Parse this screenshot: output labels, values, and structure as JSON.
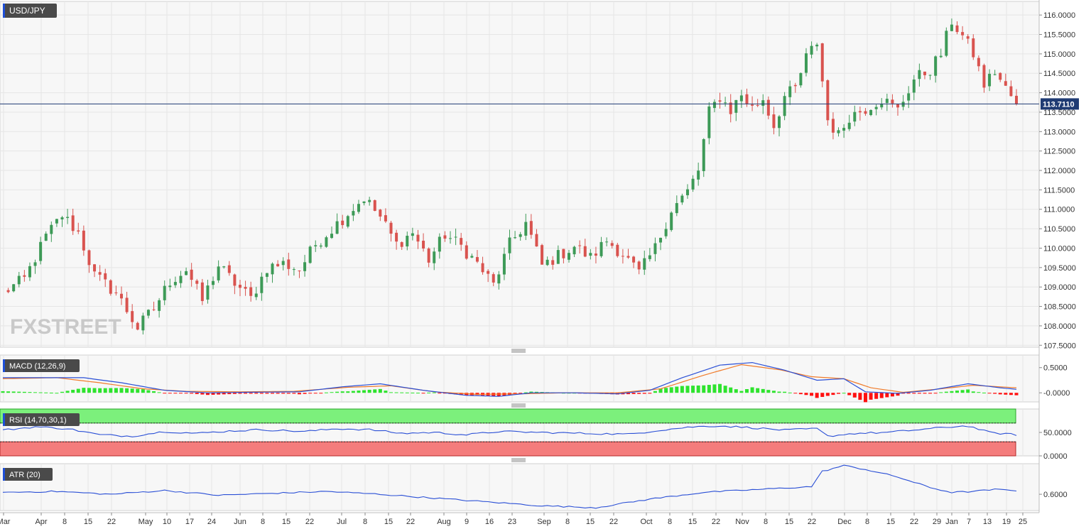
{
  "symbol": "USD/JPY",
  "watermark": "FXSTREET",
  "colors": {
    "up": "#3d9a57",
    "down": "#d9534f",
    "price_line": "#1f3b73",
    "macd_line": "#2a4fd6",
    "signal_line": "#f07b2a",
    "hist_pos": "#2ee32e",
    "hist_neg": "#ff1010",
    "rsi_line": "#2a4fd6",
    "rsi_overbought_fill": "#7cf07c",
    "rsi_oversold_fill": "#f47c7c",
    "atr_line": "#2a4fd6",
    "grid": "#e6e6e6",
    "panel_bg": "#f7f7f7",
    "label_bg": "#4a4a4a"
  },
  "current_price": {
    "value": 113.711,
    "label": "113.7110"
  },
  "indicators": {
    "macd": {
      "label": "MACD (12,26,9)",
      "ticks": [
        "0.5000",
        "-0.0000"
      ]
    },
    "rsi": {
      "label": "RSI (14,70,30,1)",
      "ticks": [
        "50.0000",
        "0.0000"
      ]
    },
    "atr": {
      "label": "ATR (20)",
      "ticks": [
        "0.6000"
      ]
    }
  },
  "chart_data": {
    "type": "candlestick",
    "ylim": [
      107.45,
      116.35
    ],
    "y_ticks": [
      "116.0000",
      "115.5000",
      "115.0000",
      "114.5000",
      "114.0000",
      "113.5000",
      "113.0000",
      "112.5000",
      "112.0000",
      "111.5000",
      "111.0000",
      "110.5000",
      "110.0000",
      "109.5000",
      "109.0000",
      "108.5000",
      "108.0000",
      "107.5000"
    ],
    "x_tick_labels": [
      "Mar",
      "Apr",
      "8",
      "15",
      "22",
      "May",
      "10",
      "17",
      "24",
      "Jun",
      "8",
      "15",
      "22",
      "Jul",
      "8",
      "15",
      "22",
      "Aug",
      "9",
      "16",
      "23",
      "Sep",
      "8",
      "15",
      "22",
      "Oct",
      "8",
      "15",
      "22",
      "Nov",
      "8",
      "15",
      "22",
      "Dec",
      "8",
      "15",
      "22",
      "29",
      "Jan",
      "7",
      "13",
      "19",
      "25"
    ],
    "price_path": [
      [
        0,
        108.85
      ],
      [
        4,
        109.2
      ],
      [
        8,
        110.3
      ],
      [
        11,
        110.85
      ],
      [
        14,
        110.4
      ],
      [
        17,
        109.3
      ],
      [
        21,
        108.85
      ],
      [
        25,
        107.95
      ],
      [
        28,
        108.45
      ],
      [
        31,
        109.15
      ],
      [
        34,
        109.45
      ],
      [
        37,
        108.65
      ],
      [
        40,
        109.55
      ],
      [
        43,
        109.1
      ],
      [
        46,
        108.7
      ],
      [
        49,
        109.5
      ],
      [
        52,
        109.6
      ],
      [
        55,
        109.45
      ],
      [
        58,
        110.1
      ],
      [
        61,
        110.5
      ],
      [
        64,
        110.9
      ],
      [
        67,
        111.3
      ],
      [
        70,
        110.8
      ],
      [
        73,
        110.1
      ],
      [
        76,
        110.4
      ],
      [
        79,
        109.7
      ],
      [
        82,
        110.35
      ],
      [
        85,
        110.05
      ],
      [
        88,
        109.6
      ],
      [
        91,
        109.05
      ],
      [
        94,
        110.1
      ],
      [
        97,
        110.65
      ],
      [
        100,
        109.55
      ],
      [
        103,
        109.8
      ],
      [
        106,
        110.05
      ],
      [
        109,
        109.75
      ],
      [
        112,
        110.2
      ],
      [
        115,
        109.85
      ],
      [
        118,
        109.35
      ],
      [
        121,
        110.0
      ],
      [
        124,
        111.0
      ],
      [
        127,
        111.45
      ],
      [
        129,
        112.0
      ],
      [
        131,
        113.5
      ],
      [
        133,
        113.9
      ],
      [
        135,
        113.55
      ],
      [
        137,
        113.95
      ],
      [
        139,
        113.6
      ],
      [
        141,
        113.85
      ],
      [
        143,
        113.15
      ],
      [
        145,
        113.9
      ],
      [
        147,
        114.1
      ],
      [
        149,
        114.9
      ],
      [
        151,
        115.3
      ],
      [
        153,
        113.3
      ],
      [
        155,
        112.9
      ],
      [
        157,
        113.4
      ],
      [
        160,
        113.6
      ],
      [
        163,
        113.85
      ],
      [
        166,
        113.55
      ],
      [
        169,
        114.35
      ],
      [
        172,
        114.6
      ],
      [
        174,
        115.0
      ],
      [
        176,
        115.85
      ],
      [
        178,
        115.45
      ],
      [
        180,
        115.0
      ],
      [
        182,
        114.2
      ],
      [
        184,
        114.55
      ],
      [
        186,
        114.1
      ],
      [
        188,
        113.71
      ]
    ],
    "macd_path": [
      [
        0,
        0.3
      ],
      [
        8,
        0.3
      ],
      [
        15,
        0.3
      ],
      [
        22,
        0.2
      ],
      [
        30,
        0.05
      ],
      [
        38,
        0.0
      ],
      [
        45,
        0.01
      ],
      [
        55,
        0.02
      ],
      [
        63,
        0.12
      ],
      [
        70,
        0.18
      ],
      [
        78,
        0.05
      ],
      [
        86,
        -0.05
      ],
      [
        92,
        -0.07
      ],
      [
        98,
        0.0
      ],
      [
        106,
        0.0
      ],
      [
        114,
        -0.02
      ],
      [
        120,
        0.05
      ],
      [
        126,
        0.3
      ],
      [
        133,
        0.55
      ],
      [
        139,
        0.6
      ],
      [
        145,
        0.45
      ],
      [
        151,
        0.25
      ],
      [
        156,
        0.28
      ],
      [
        160,
        0.02
      ],
      [
        166,
        -0.01
      ],
      [
        172,
        0.05
      ],
      [
        179,
        0.18
      ],
      [
        185,
        0.1
      ],
      [
        188,
        0.07
      ]
    ],
    "signal_path": [
      [
        0,
        0.28
      ],
      [
        10,
        0.3
      ],
      [
        18,
        0.2
      ],
      [
        26,
        0.08
      ],
      [
        34,
        0.03
      ],
      [
        44,
        0.02
      ],
      [
        54,
        0.03
      ],
      [
        64,
        0.11
      ],
      [
        72,
        0.14
      ],
      [
        80,
        0.02
      ],
      [
        88,
        -0.03
      ],
      [
        96,
        -0.02
      ],
      [
        104,
        0.0
      ],
      [
        114,
        0.0
      ],
      [
        122,
        0.08
      ],
      [
        130,
        0.35
      ],
      [
        137,
        0.56
      ],
      [
        144,
        0.46
      ],
      [
        150,
        0.32
      ],
      [
        156,
        0.28
      ],
      [
        161,
        0.1
      ],
      [
        167,
        0.01
      ],
      [
        174,
        0.08
      ],
      [
        180,
        0.15
      ],
      [
        188,
        0.1
      ]
    ],
    "rsi_path": [
      [
        0,
        55
      ],
      [
        6,
        62
      ],
      [
        12,
        58
      ],
      [
        18,
        45
      ],
      [
        24,
        42
      ],
      [
        30,
        52
      ],
      [
        36,
        48
      ],
      [
        42,
        53
      ],
      [
        48,
        56
      ],
      [
        56,
        52
      ],
      [
        62,
        58
      ],
      [
        68,
        56
      ],
      [
        74,
        48
      ],
      [
        80,
        50
      ],
      [
        86,
        45
      ],
      [
        92,
        52
      ],
      [
        100,
        50
      ],
      [
        108,
        48
      ],
      [
        116,
        46
      ],
      [
        122,
        55
      ],
      [
        128,
        62
      ],
      [
        133,
        64
      ],
      [
        139,
        60
      ],
      [
        145,
        55
      ],
      [
        151,
        58
      ],
      [
        153,
        42
      ],
      [
        158,
        48
      ],
      [
        164,
        50
      ],
      [
        170,
        56
      ],
      [
        176,
        62
      ],
      [
        179,
        64
      ],
      [
        183,
        50
      ],
      [
        188,
        45
      ]
    ],
    "atr_path": [
      [
        0,
        0.62
      ],
      [
        10,
        0.63
      ],
      [
        20,
        0.6
      ],
      [
        30,
        0.64
      ],
      [
        40,
        0.59
      ],
      [
        50,
        0.61
      ],
      [
        60,
        0.63
      ],
      [
        70,
        0.6
      ],
      [
        80,
        0.56
      ],
      [
        90,
        0.52
      ],
      [
        100,
        0.48
      ],
      [
        110,
        0.46
      ],
      [
        120,
        0.55
      ],
      [
        130,
        0.62
      ],
      [
        140,
        0.65
      ],
      [
        150,
        0.68
      ],
      [
        152,
        0.84
      ],
      [
        156,
        0.9
      ],
      [
        160,
        0.86
      ],
      [
        166,
        0.78
      ],
      [
        172,
        0.67
      ],
      [
        176,
        0.62
      ],
      [
        180,
        0.63
      ],
      [
        184,
        0.65
      ],
      [
        188,
        0.64
      ]
    ]
  }
}
